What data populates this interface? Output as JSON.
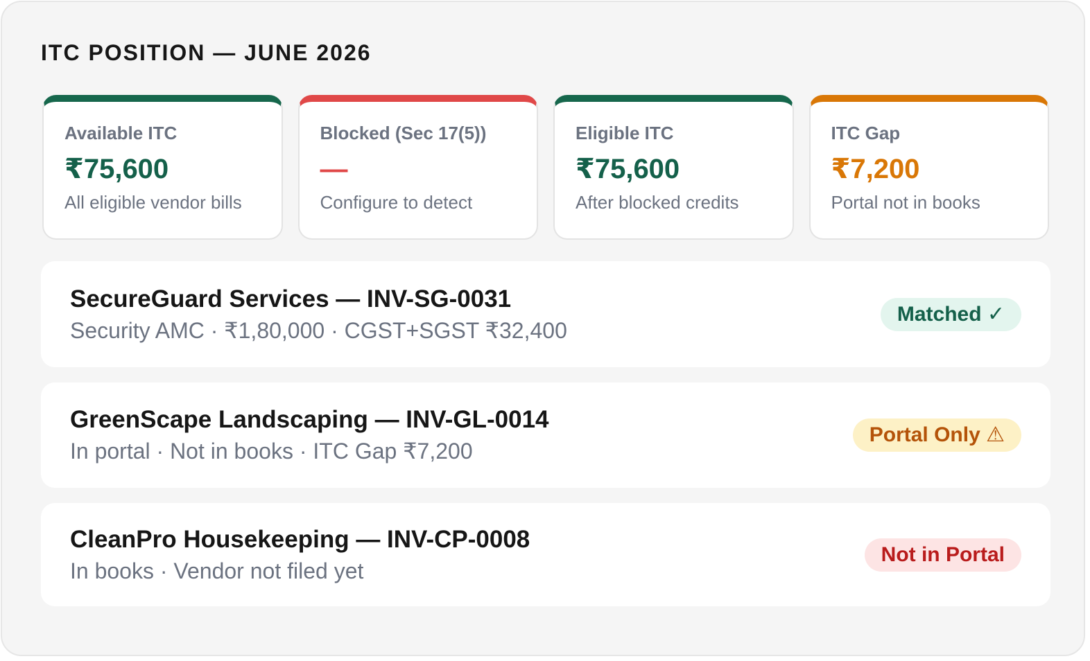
{
  "panel": {
    "title": "ITC POSITION — JUNE 2026"
  },
  "cards": [
    {
      "label": "Available ITC",
      "value": "₹75,600",
      "sub": "All eligible vendor bills",
      "accent": "#16674c"
    },
    {
      "label": "Blocked (Sec 17(5))",
      "value": "—",
      "sub": "Configure to detect",
      "accent": "#e04848"
    },
    {
      "label": "Eligible ITC",
      "value": "₹75,600",
      "sub": "After blocked credits",
      "accent": "#16674c"
    },
    {
      "label": "ITC Gap",
      "value": "₹7,200",
      "sub": "Portal not in books",
      "accent": "#d97706"
    }
  ],
  "invoices": [
    {
      "title": "SecureGuard Services — INV-SG-0031",
      "details": "Security AMC · ₹1,80,000 · CGST+SGST ₹32,400",
      "status": "Matched ✓",
      "status_color": "#14604a"
    },
    {
      "title": "GreenScape Landscaping — INV-GL-0014",
      "details": "In portal · Not in books · ITC Gap ₹7,200",
      "status": "Portal Only ⚠",
      "status_color": "#b45309"
    },
    {
      "title": "CleanPro Housekeeping — INV-CP-0008",
      "details": "In books · Vendor not filed yet",
      "status": "Not in Portal",
      "status_color": "#b91c1c"
    }
  ]
}
